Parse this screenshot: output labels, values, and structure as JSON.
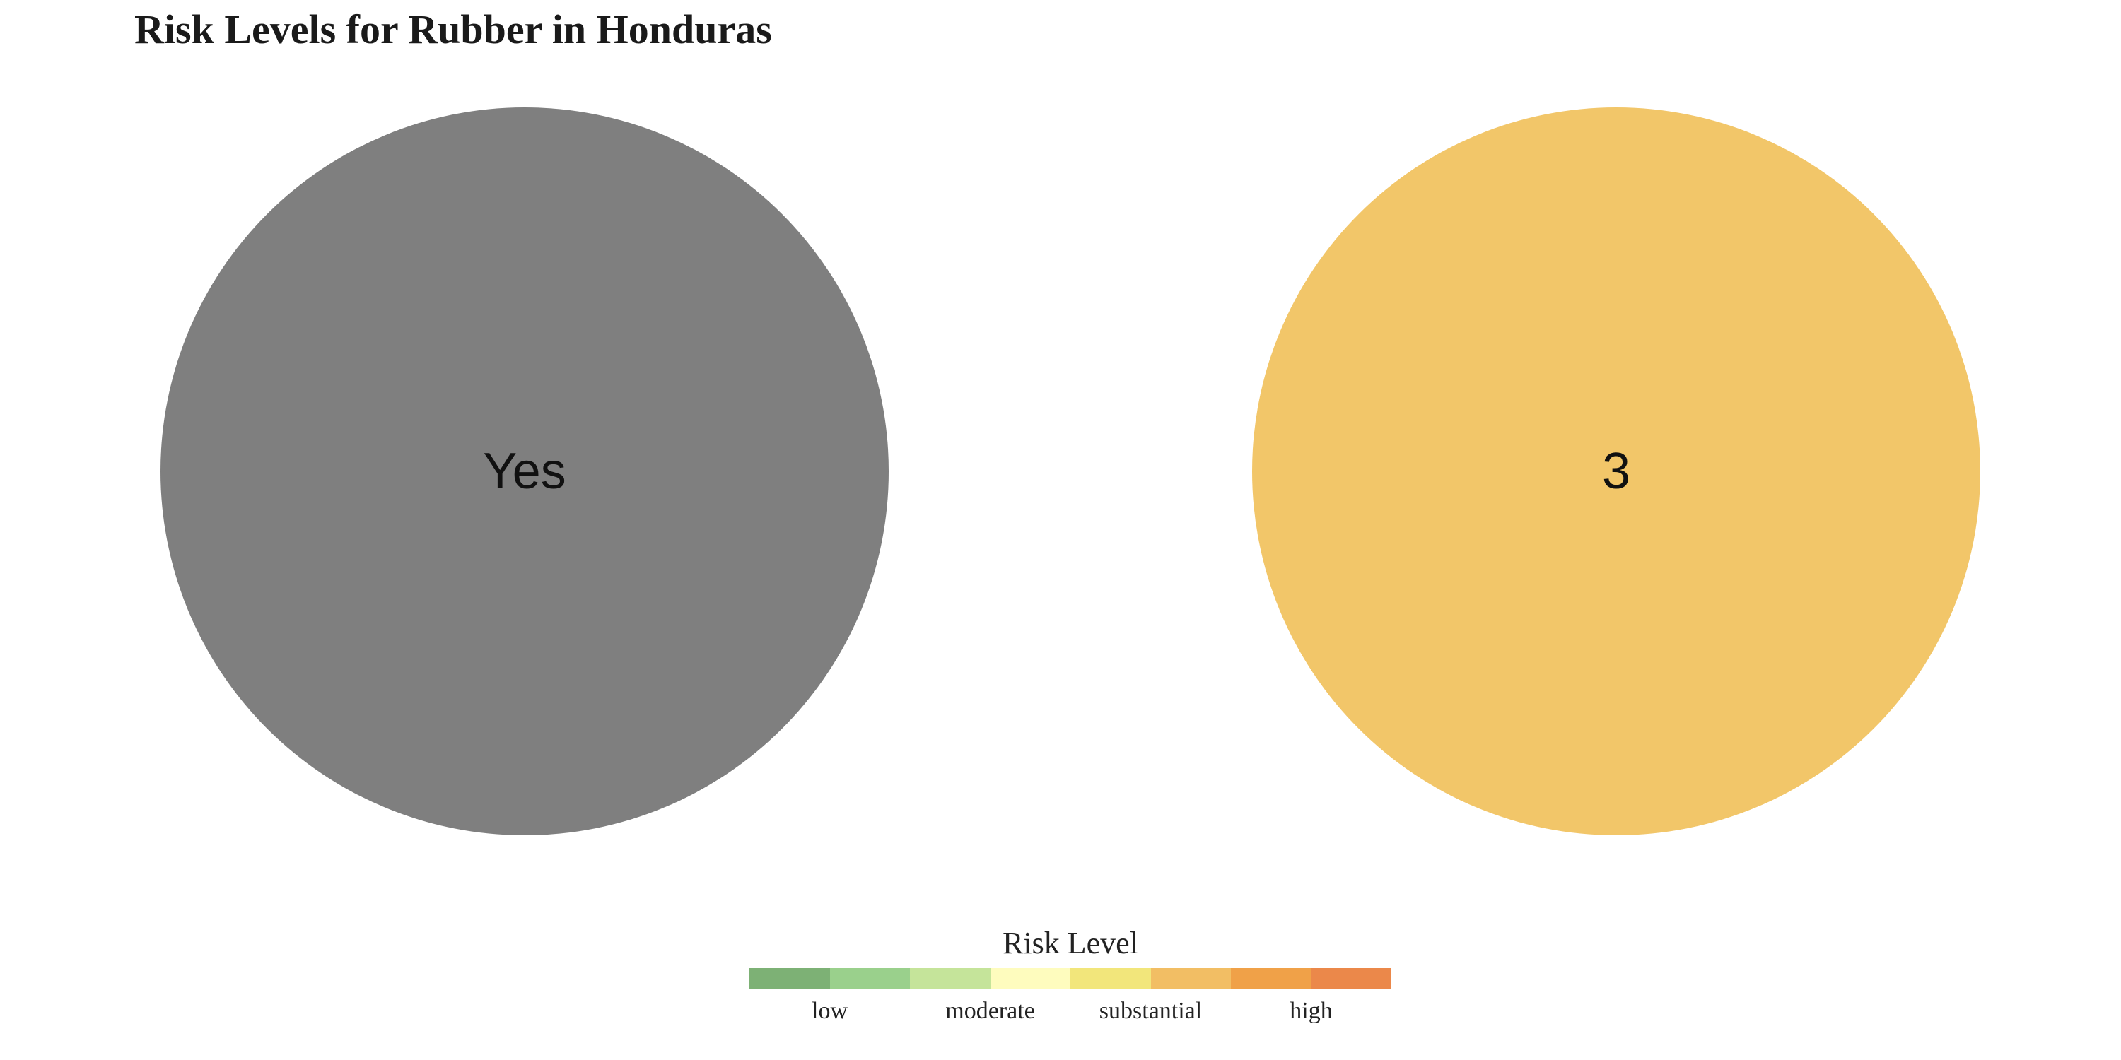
{
  "chart_data": {
    "type": "pie",
    "title": "Risk Levels for Rubber in Honduras",
    "circles": [
      {
        "label": "Yes",
        "value": 1,
        "color": "#7f7f7f"
      },
      {
        "label": "3",
        "value": 1,
        "color": "#f2c669"
      }
    ],
    "legend": {
      "title": "Risk Level",
      "colors": [
        "#7db175",
        "#9ad08c",
        "#c5e49a",
        "#fefcbe",
        "#f2e67b",
        "#f2be64",
        "#f0a148",
        "#eb884a"
      ],
      "labels": [
        "low",
        "moderate",
        "substantial",
        "high"
      ]
    },
    "xlabel": "",
    "ylabel": ""
  }
}
